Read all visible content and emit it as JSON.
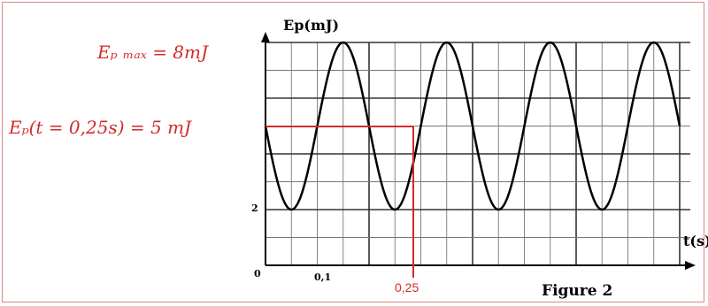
{
  "chart_data": {
    "type": "line",
    "ylabel": "Ep(mJ)",
    "xlabel": "t(s)",
    "figure_label": "Figure 2",
    "y_ticks": [
      {
        "value": 0,
        "label": "0"
      },
      {
        "value": 2,
        "label": "2"
      }
    ],
    "x_ticks": [
      {
        "value": 0.1,
        "label": "0,1"
      }
    ],
    "ylim": [
      0,
      8
    ],
    "grid": true,
    "series": [
      {
        "x": [
          0,
          0.05,
          0.15,
          0.25,
          0.3,
          0.35,
          0.4,
          0.45,
          0.5,
          0.55,
          0.6,
          0.65,
          0.7,
          0.75,
          0.8
        ],
        "values": [
          5,
          2,
          8,
          5,
          2,
          5,
          8,
          5,
          2,
          5,
          8,
          5,
          2,
          5,
          8
        ],
        "color": "#000000"
      }
    ],
    "annotations": {
      "max_text": "Eₚ ₘₐₓ = 8mJ",
      "point_text": "Eₚ(t = 0,25s) = 5 mJ",
      "point_x_label": "0,25",
      "color": "#d42a2a"
    }
  }
}
